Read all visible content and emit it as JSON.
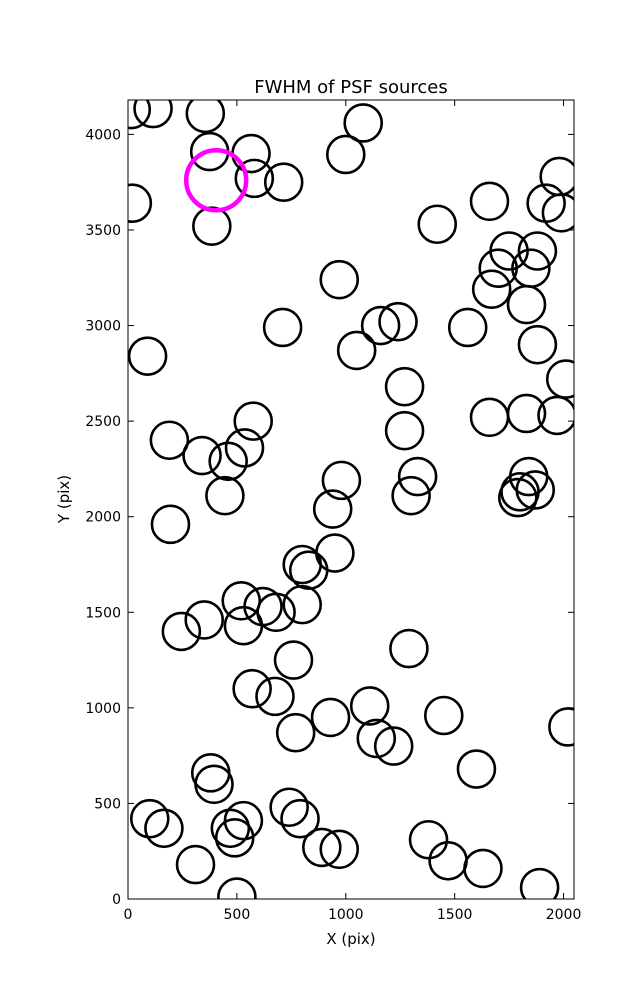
{
  "chart_data": {
    "type": "scatter",
    "title": "FWHM of PSF sources",
    "xlabel": "X (pix)",
    "ylabel": "Y (pix)",
    "xlim": [
      0,
      2048
    ],
    "ylim": [
      0,
      4180
    ],
    "xticks": [
      0,
      500,
      1000,
      1500,
      2000
    ],
    "yticks": [
      0,
      500,
      1000,
      1500,
      2000,
      2500,
      3000,
      3500,
      4000
    ],
    "grid": false,
    "marker": "open-circle",
    "colors": {
      "default": "#000000",
      "highlight": "#ff00ff"
    },
    "highlight": {
      "x": 405,
      "y": 3760
    },
    "points": [
      {
        "x": 15,
        "y": 4130
      },
      {
        "x": 115,
        "y": 4135
      },
      {
        "x": 355,
        "y": 4110
      },
      {
        "x": 1080,
        "y": 4060
      },
      {
        "x": 375,
        "y": 3910
      },
      {
        "x": 565,
        "y": 3900
      },
      {
        "x": 1000,
        "y": 3895
      },
      {
        "x": 580,
        "y": 3770
      },
      {
        "x": 715,
        "y": 3750
      },
      {
        "x": 20,
        "y": 3640
      },
      {
        "x": 1980,
        "y": 3780
      },
      {
        "x": 1660,
        "y": 3650
      },
      {
        "x": 1920,
        "y": 3640
      },
      {
        "x": 1990,
        "y": 3590
      },
      {
        "x": 385,
        "y": 3520
      },
      {
        "x": 1420,
        "y": 3530
      },
      {
        "x": 970,
        "y": 3240
      },
      {
        "x": 1750,
        "y": 3390
      },
      {
        "x": 1880,
        "y": 3390
      },
      {
        "x": 1700,
        "y": 3300
      },
      {
        "x": 1850,
        "y": 3300
      },
      {
        "x": 1670,
        "y": 3190
      },
      {
        "x": 1830,
        "y": 3110
      },
      {
        "x": 710,
        "y": 2990
      },
      {
        "x": 1160,
        "y": 3000
      },
      {
        "x": 1240,
        "y": 3020
      },
      {
        "x": 1560,
        "y": 2990
      },
      {
        "x": 90,
        "y": 2840
      },
      {
        "x": 1050,
        "y": 2870
      },
      {
        "x": 1880,
        "y": 2900
      },
      {
        "x": 1270,
        "y": 2680
      },
      {
        "x": 2010,
        "y": 2720
      },
      {
        "x": 575,
        "y": 2500
      },
      {
        "x": 1660,
        "y": 2520
      },
      {
        "x": 1830,
        "y": 2540
      },
      {
        "x": 1970,
        "y": 2530
      },
      {
        "x": 1270,
        "y": 2450
      },
      {
        "x": 190,
        "y": 2400
      },
      {
        "x": 535,
        "y": 2360
      },
      {
        "x": 340,
        "y": 2320
      },
      {
        "x": 460,
        "y": 2290
      },
      {
        "x": 980,
        "y": 2190
      },
      {
        "x": 1330,
        "y": 2210
      },
      {
        "x": 1840,
        "y": 2210
      },
      {
        "x": 1300,
        "y": 2110
      },
      {
        "x": 1800,
        "y": 2130
      },
      {
        "x": 1870,
        "y": 2140
      },
      {
        "x": 1790,
        "y": 2100
      },
      {
        "x": 445,
        "y": 2110
      },
      {
        "x": 940,
        "y": 2040
      },
      {
        "x": 195,
        "y": 1960
      },
      {
        "x": 950,
        "y": 1810
      },
      {
        "x": 800,
        "y": 1750
      },
      {
        "x": 830,
        "y": 1720
      },
      {
        "x": 520,
        "y": 1560
      },
      {
        "x": 620,
        "y": 1530
      },
      {
        "x": 680,
        "y": 1500
      },
      {
        "x": 800,
        "y": 1540
      },
      {
        "x": 350,
        "y": 1460
      },
      {
        "x": 530,
        "y": 1430
      },
      {
        "x": 245,
        "y": 1400
      },
      {
        "x": 1290,
        "y": 1310
      },
      {
        "x": 760,
        "y": 1250
      },
      {
        "x": 570,
        "y": 1100
      },
      {
        "x": 675,
        "y": 1060
      },
      {
        "x": 1110,
        "y": 1010
      },
      {
        "x": 930,
        "y": 950
      },
      {
        "x": 1450,
        "y": 960
      },
      {
        "x": 2020,
        "y": 900
      },
      {
        "x": 770,
        "y": 870
      },
      {
        "x": 1140,
        "y": 840
      },
      {
        "x": 1220,
        "y": 800
      },
      {
        "x": 1600,
        "y": 680
      },
      {
        "x": 380,
        "y": 660
      },
      {
        "x": 395,
        "y": 600
      },
      {
        "x": 740,
        "y": 480
      },
      {
        "x": 790,
        "y": 420
      },
      {
        "x": 100,
        "y": 420
      },
      {
        "x": 165,
        "y": 370
      },
      {
        "x": 470,
        "y": 370
      },
      {
        "x": 530,
        "y": 410
      },
      {
        "x": 490,
        "y": 320
      },
      {
        "x": 1380,
        "y": 310
      },
      {
        "x": 890,
        "y": 270
      },
      {
        "x": 970,
        "y": 260
      },
      {
        "x": 310,
        "y": 180
      },
      {
        "x": 1470,
        "y": 200
      },
      {
        "x": 1630,
        "y": 160
      },
      {
        "x": 500,
        "y": 10
      },
      {
        "x": 1890,
        "y": 60
      }
    ]
  }
}
